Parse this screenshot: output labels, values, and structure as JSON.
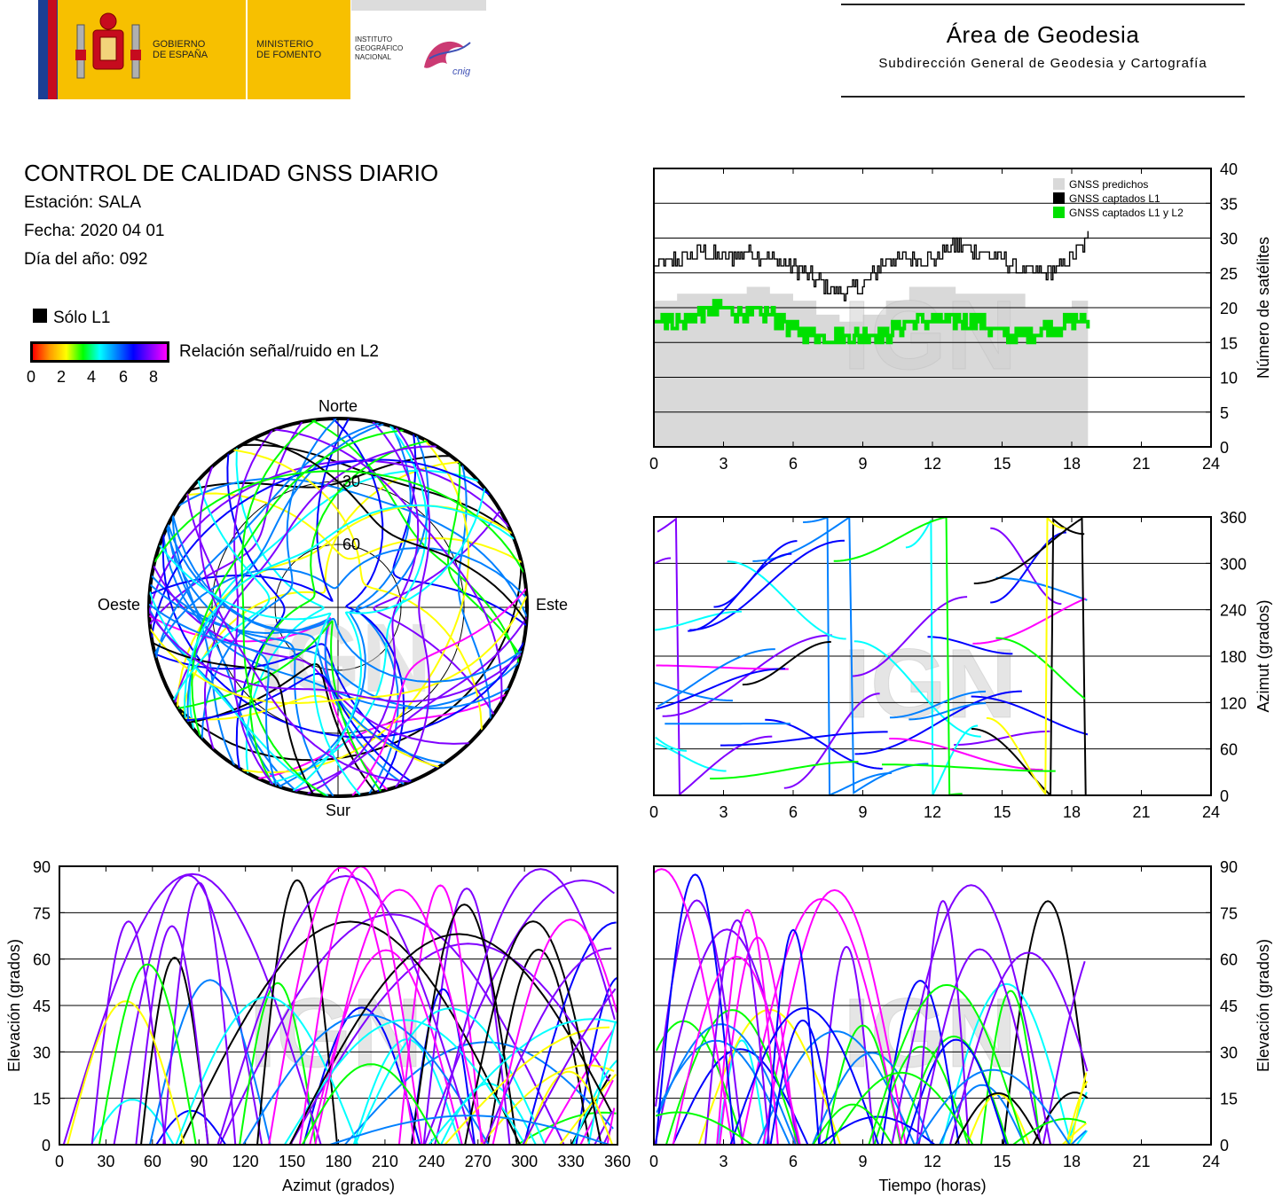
{
  "header": {
    "gov_line1": "GOBIERNO",
    "gov_line2": "DE ESPAÑA",
    "min_line1": "MINISTERIO",
    "min_line2": "DE FOMENTO",
    "ign_line1": "INSTITUTO",
    "ign_line2": "GEOGRÁFICO",
    "ign_line3": "NACIONAL",
    "cnig": "cnig",
    "area_title": "Área de Geodesia",
    "area_subtitle": "Subdirección General de Geodesia y Cartografía"
  },
  "info": {
    "title": "CONTROL DE CALIDAD GNSS DIARIO",
    "station": "Estación: SALA",
    "date": "Fecha: 2020 04 01",
    "doy": "Día del año: 092"
  },
  "legend": {
    "only_l1": "Sólo L1",
    "snr_label": "Relación señal/ruido en L2",
    "cbar_ticks": [
      "0",
      "2",
      "4",
      "6",
      "8"
    ]
  },
  "watermark": "IGN",
  "colors": {
    "predicted": "#d9d9d9",
    "captured_l1": "#000000",
    "captured_l1_l2": "#00e000",
    "grid": "#000000",
    "snr_scale": [
      "#ff0000",
      "#ff9900",
      "#ffff00",
      "#00ff00",
      "#00ffff",
      "#0080ff",
      "#0000ff",
      "#8000ff",
      "#ff00ff"
    ]
  },
  "chart_data": [
    {
      "id": "satellite_count",
      "type": "line",
      "xlabel": "",
      "ylabel": "Número de satélites",
      "xlim": [
        0,
        24
      ],
      "ylim": [
        0,
        40
      ],
      "xticks": [
        "0",
        "3",
        "6",
        "9",
        "12",
        "15",
        "18",
        "21",
        "24"
      ],
      "yticks": [
        "0",
        "5",
        "10",
        "15",
        "20",
        "25",
        "30",
        "35",
        "40"
      ],
      "data_end_hour": 18.7,
      "legend": [
        "GNSS predichos",
        "GNSS captados L1",
        "GNSS captados L1 y L2"
      ],
      "series": [
        {
          "name": "GNSS predichos",
          "x": [
            0,
            1,
            2,
            3,
            4,
            5,
            6,
            7,
            8,
            9,
            10,
            11,
            12,
            13,
            14,
            15,
            16,
            17,
            18,
            18.7
          ],
          "values": [
            21,
            22,
            22,
            22,
            23,
            22,
            21,
            19,
            18,
            19,
            21,
            23,
            23,
            22,
            22,
            22,
            20,
            20,
            21,
            22
          ]
        },
        {
          "name": "GNSS captados L1",
          "x": [
            0,
            1,
            2,
            3,
            4,
            5,
            6,
            7,
            8,
            9,
            10,
            11,
            12,
            13,
            14,
            15,
            16,
            17,
            18,
            18.7
          ],
          "values": [
            26,
            27,
            28,
            27,
            28,
            27,
            26,
            24,
            22,
            23,
            27,
            27,
            27,
            29,
            28,
            27,
            25,
            25,
            27,
            30
          ]
        },
        {
          "name": "GNSS captados L1 y L2",
          "x": [
            0,
            1,
            2,
            3,
            4,
            5,
            6,
            7,
            8,
            9,
            10,
            11,
            12,
            13,
            14,
            15,
            16,
            17,
            18,
            18.7
          ],
          "values": [
            19,
            18,
            19,
            20,
            19,
            19,
            17,
            16,
            16,
            16,
            16,
            18,
            18,
            18,
            18,
            16,
            16,
            17,
            18,
            18
          ]
        }
      ]
    },
    {
      "id": "azimuth_vs_time",
      "type": "scatter",
      "xlabel": "",
      "ylabel": "Azimut (grados)",
      "xlim": [
        0,
        24
      ],
      "ylim": [
        0,
        360
      ],
      "xticks": [
        "0",
        "3",
        "6",
        "9",
        "12",
        "15",
        "18",
        "21",
        "24"
      ],
      "yticks": [
        "0",
        "60",
        "120",
        "180",
        "240",
        "300",
        "360"
      ],
      "data_end_hour": 18.7
    },
    {
      "id": "skyplot",
      "type": "scatter",
      "labels": {
        "north": "Norte",
        "south": "Sur",
        "east": "Este",
        "west": "Oeste"
      },
      "ring_labels": [
        "30",
        "60"
      ]
    },
    {
      "id": "elevation_vs_azimuth",
      "type": "scatter",
      "xlabel": "Azimut (grados)",
      "ylabel": "Elevación (grados)",
      "xlim": [
        0,
        360
      ],
      "ylim": [
        0,
        90
      ],
      "xticks": [
        "0",
        "30",
        "60",
        "90",
        "120",
        "150",
        "180",
        "210",
        "240",
        "270",
        "300",
        "330",
        "360"
      ],
      "yticks": [
        "0",
        "15",
        "30",
        "45",
        "60",
        "75",
        "90"
      ]
    },
    {
      "id": "elevation_vs_time",
      "type": "scatter",
      "xlabel": "Tiempo (horas)",
      "ylabel": "Elevación (grados)",
      "xlim": [
        0,
        24
      ],
      "ylim": [
        0,
        90
      ],
      "xticks": [
        "0",
        "3",
        "6",
        "9",
        "12",
        "15",
        "18",
        "21",
        "24"
      ],
      "yticks": [
        "0",
        "15",
        "30",
        "45",
        "60",
        "75",
        "90"
      ],
      "data_end_hour": 18.7
    }
  ]
}
